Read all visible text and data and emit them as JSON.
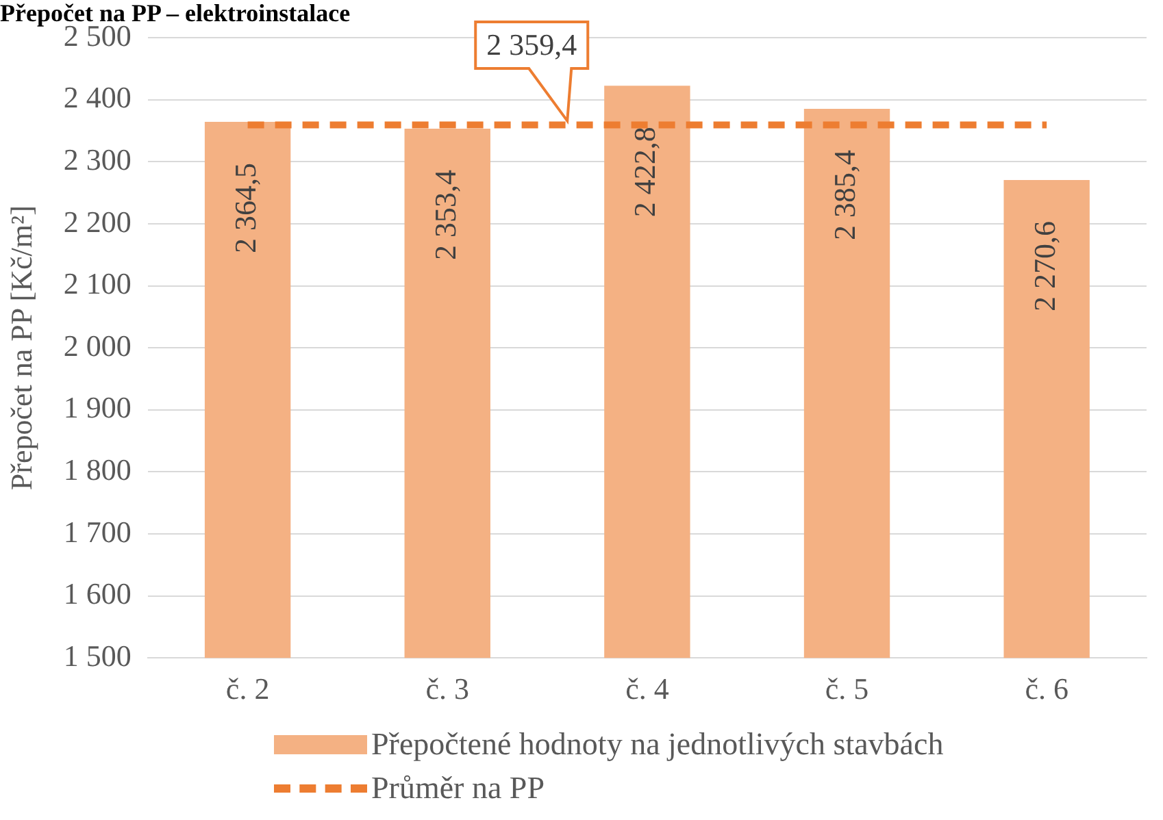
{
  "chart_data": {
    "type": "bar",
    "title": "Přepočet na PP – elektroinstalace",
    "ylabel": "Přepočet na PP [Kč/m²]",
    "categories": [
      "č. 2",
      "č. 3",
      "č. 4",
      "č. 5",
      "č. 6"
    ],
    "series": [
      {
        "name": "Přepočtené hodnoty na jednotlivých stavbách",
        "color": "#f4b183",
        "values": [
          2364.5,
          2353.4,
          2422.8,
          2385.4,
          2270.6
        ],
        "value_labels": [
          "2 364,5",
          "2 353,4",
          "2 422,8",
          "2 385,4",
          "2 270,6"
        ]
      },
      {
        "name": "Průměr na PP",
        "type": "line",
        "color": "#ed7d31",
        "line_style": "dashed",
        "marker": "none",
        "values": [
          2359.4,
          2359.4,
          2359.4,
          2359.4,
          2359.4
        ]
      }
    ],
    "annotations": [
      {
        "text": "2 359,4",
        "y": 2359.4
      }
    ],
    "ylim": [
      1500,
      2500
    ],
    "yticks": [
      {
        "value": 1500,
        "label": "1 500"
      },
      {
        "value": 1600,
        "label": "1 600"
      },
      {
        "value": 1700,
        "label": "1 700"
      },
      {
        "value": 1800,
        "label": "1 800"
      },
      {
        "value": 1900,
        "label": "1 900"
      },
      {
        "value": 2000,
        "label": "2 000"
      },
      {
        "value": 2100,
        "label": "2 100"
      },
      {
        "value": 2200,
        "label": "2 200"
      },
      {
        "value": 2300,
        "label": "2 300"
      },
      {
        "value": 2400,
        "label": "2 400"
      },
      {
        "value": 2500,
        "label": "2 500"
      }
    ],
    "grid": "y",
    "legend": "bottom"
  }
}
